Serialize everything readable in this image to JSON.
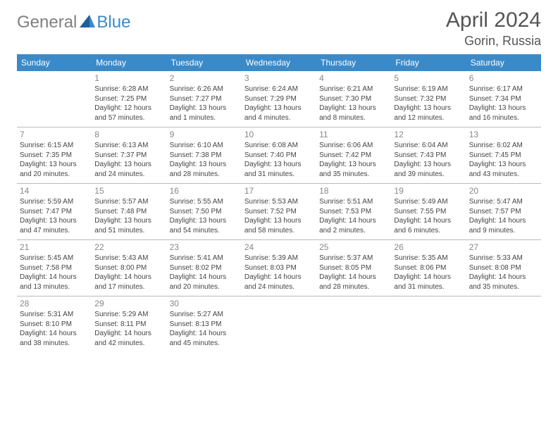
{
  "logo": {
    "general": "General",
    "blue": "Blue"
  },
  "title": "April 2024",
  "location": "Gorin, Russia",
  "header_bg": "#3a8ac9",
  "dayHeaders": [
    "Sunday",
    "Monday",
    "Tuesday",
    "Wednesday",
    "Thursday",
    "Friday",
    "Saturday"
  ],
  "weeks": [
    [
      {
        "empty": true
      },
      {
        "num": "1",
        "sunrise": "Sunrise: 6:28 AM",
        "sunset": "Sunset: 7:25 PM",
        "day1": "Daylight: 12 hours",
        "day2": "and 57 minutes."
      },
      {
        "num": "2",
        "sunrise": "Sunrise: 6:26 AM",
        "sunset": "Sunset: 7:27 PM",
        "day1": "Daylight: 13 hours",
        "day2": "and 1 minutes."
      },
      {
        "num": "3",
        "sunrise": "Sunrise: 6:24 AM",
        "sunset": "Sunset: 7:29 PM",
        "day1": "Daylight: 13 hours",
        "day2": "and 4 minutes."
      },
      {
        "num": "4",
        "sunrise": "Sunrise: 6:21 AM",
        "sunset": "Sunset: 7:30 PM",
        "day1": "Daylight: 13 hours",
        "day2": "and 8 minutes."
      },
      {
        "num": "5",
        "sunrise": "Sunrise: 6:19 AM",
        "sunset": "Sunset: 7:32 PM",
        "day1": "Daylight: 13 hours",
        "day2": "and 12 minutes."
      },
      {
        "num": "6",
        "sunrise": "Sunrise: 6:17 AM",
        "sunset": "Sunset: 7:34 PM",
        "day1": "Daylight: 13 hours",
        "day2": "and 16 minutes."
      }
    ],
    [
      {
        "num": "7",
        "sunrise": "Sunrise: 6:15 AM",
        "sunset": "Sunset: 7:35 PM",
        "day1": "Daylight: 13 hours",
        "day2": "and 20 minutes."
      },
      {
        "num": "8",
        "sunrise": "Sunrise: 6:13 AM",
        "sunset": "Sunset: 7:37 PM",
        "day1": "Daylight: 13 hours",
        "day2": "and 24 minutes."
      },
      {
        "num": "9",
        "sunrise": "Sunrise: 6:10 AM",
        "sunset": "Sunset: 7:38 PM",
        "day1": "Daylight: 13 hours",
        "day2": "and 28 minutes."
      },
      {
        "num": "10",
        "sunrise": "Sunrise: 6:08 AM",
        "sunset": "Sunset: 7:40 PM",
        "day1": "Daylight: 13 hours",
        "day2": "and 31 minutes."
      },
      {
        "num": "11",
        "sunrise": "Sunrise: 6:06 AM",
        "sunset": "Sunset: 7:42 PM",
        "day1": "Daylight: 13 hours",
        "day2": "and 35 minutes."
      },
      {
        "num": "12",
        "sunrise": "Sunrise: 6:04 AM",
        "sunset": "Sunset: 7:43 PM",
        "day1": "Daylight: 13 hours",
        "day2": "and 39 minutes."
      },
      {
        "num": "13",
        "sunrise": "Sunrise: 6:02 AM",
        "sunset": "Sunset: 7:45 PM",
        "day1": "Daylight: 13 hours",
        "day2": "and 43 minutes."
      }
    ],
    [
      {
        "num": "14",
        "sunrise": "Sunrise: 5:59 AM",
        "sunset": "Sunset: 7:47 PM",
        "day1": "Daylight: 13 hours",
        "day2": "and 47 minutes."
      },
      {
        "num": "15",
        "sunrise": "Sunrise: 5:57 AM",
        "sunset": "Sunset: 7:48 PM",
        "day1": "Daylight: 13 hours",
        "day2": "and 51 minutes."
      },
      {
        "num": "16",
        "sunrise": "Sunrise: 5:55 AM",
        "sunset": "Sunset: 7:50 PM",
        "day1": "Daylight: 13 hours",
        "day2": "and 54 minutes."
      },
      {
        "num": "17",
        "sunrise": "Sunrise: 5:53 AM",
        "sunset": "Sunset: 7:52 PM",
        "day1": "Daylight: 13 hours",
        "day2": "and 58 minutes."
      },
      {
        "num": "18",
        "sunrise": "Sunrise: 5:51 AM",
        "sunset": "Sunset: 7:53 PM",
        "day1": "Daylight: 14 hours",
        "day2": "and 2 minutes."
      },
      {
        "num": "19",
        "sunrise": "Sunrise: 5:49 AM",
        "sunset": "Sunset: 7:55 PM",
        "day1": "Daylight: 14 hours",
        "day2": "and 6 minutes."
      },
      {
        "num": "20",
        "sunrise": "Sunrise: 5:47 AM",
        "sunset": "Sunset: 7:57 PM",
        "day1": "Daylight: 14 hours",
        "day2": "and 9 minutes."
      }
    ],
    [
      {
        "num": "21",
        "sunrise": "Sunrise: 5:45 AM",
        "sunset": "Sunset: 7:58 PM",
        "day1": "Daylight: 14 hours",
        "day2": "and 13 minutes."
      },
      {
        "num": "22",
        "sunrise": "Sunrise: 5:43 AM",
        "sunset": "Sunset: 8:00 PM",
        "day1": "Daylight: 14 hours",
        "day2": "and 17 minutes."
      },
      {
        "num": "23",
        "sunrise": "Sunrise: 5:41 AM",
        "sunset": "Sunset: 8:02 PM",
        "day1": "Daylight: 14 hours",
        "day2": "and 20 minutes."
      },
      {
        "num": "24",
        "sunrise": "Sunrise: 5:39 AM",
        "sunset": "Sunset: 8:03 PM",
        "day1": "Daylight: 14 hours",
        "day2": "and 24 minutes."
      },
      {
        "num": "25",
        "sunrise": "Sunrise: 5:37 AM",
        "sunset": "Sunset: 8:05 PM",
        "day1": "Daylight: 14 hours",
        "day2": "and 28 minutes."
      },
      {
        "num": "26",
        "sunrise": "Sunrise: 5:35 AM",
        "sunset": "Sunset: 8:06 PM",
        "day1": "Daylight: 14 hours",
        "day2": "and 31 minutes."
      },
      {
        "num": "27",
        "sunrise": "Sunrise: 5:33 AM",
        "sunset": "Sunset: 8:08 PM",
        "day1": "Daylight: 14 hours",
        "day2": "and 35 minutes."
      }
    ],
    [
      {
        "num": "28",
        "sunrise": "Sunrise: 5:31 AM",
        "sunset": "Sunset: 8:10 PM",
        "day1": "Daylight: 14 hours",
        "day2": "and 38 minutes."
      },
      {
        "num": "29",
        "sunrise": "Sunrise: 5:29 AM",
        "sunset": "Sunset: 8:11 PM",
        "day1": "Daylight: 14 hours",
        "day2": "and 42 minutes."
      },
      {
        "num": "30",
        "sunrise": "Sunrise: 5:27 AM",
        "sunset": "Sunset: 8:13 PM",
        "day1": "Daylight: 14 hours",
        "day2": "and 45 minutes."
      },
      {
        "empty": true
      },
      {
        "empty": true
      },
      {
        "empty": true
      },
      {
        "empty": true
      }
    ]
  ]
}
